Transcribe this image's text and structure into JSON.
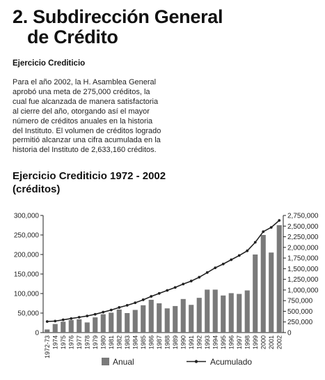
{
  "heading": {
    "line1": "2. Subdirección General",
    "line2": "de Crédito"
  },
  "section_subtitle": "Ejercicio Crediticio",
  "body_text": "Para el año 2002, la H. Asamblea General aprobó una meta de 275,000 créditos, la cual fue alcanzada de manera satisfactoria al cierre del año, otorgando así el mayor número de créditos anuales en la historia del Instituto. El volumen de créditos logrado permitió alcanzar una cifra acumulada en la historia del Instituto de 2,633,160 créditos.",
  "chart_heading": {
    "line1": "Ejercicio Crediticio 1972 - 2002",
    "line2": "(créditos)"
  },
  "colors": {
    "bar": "#7a7a7a",
    "line": "#222222",
    "text": "#222222"
  },
  "chart_data": {
    "type": "bar",
    "categories": [
      "1972-73",
      "1974",
      "1975",
      "1976",
      "1977",
      "1978",
      "1979",
      "1980",
      "1981",
      "1982",
      "1983",
      "1984",
      "1985",
      "1986",
      "1987",
      "1988",
      "1989",
      "1990",
      "1991",
      "1992",
      "1993",
      "1994",
      "1995",
      "1996",
      "1997",
      "1998",
      "1999",
      "2000",
      "2001",
      "2002"
    ],
    "series": [
      {
        "name": "Anual",
        "type": "bar",
        "axis": "left",
        "values": [
          8000,
          22000,
          28000,
          32000,
          34000,
          26000,
          39000,
          47000,
          51000,
          59000,
          50000,
          58000,
          70000,
          84000,
          75000,
          62000,
          68000,
          86000,
          71000,
          89000,
          110000,
          110000,
          95000,
          101000,
          99000,
          108000,
          200000,
          250000,
          205000,
          275000
        ]
      },
      {
        "name": "Acumulado",
        "type": "line",
        "axis": "right",
        "values": [
          260000,
          270000,
          300000,
          330000,
          360000,
          390000,
          430000,
          480000,
          530000,
          590000,
          640000,
          700000,
          770000,
          850000,
          920000,
          990000,
          1060000,
          1140000,
          1210000,
          1300000,
          1410000,
          1520000,
          1610000,
          1710000,
          1810000,
          1920000,
          2120000,
          2370000,
          2470000,
          2633160
        ]
      }
    ],
    "y_left": {
      "min": 0,
      "max": 300000,
      "ticks": [
        "0",
        "50,000",
        "100,000",
        "150,000",
        "200,000",
        "250,000",
        "300,000"
      ]
    },
    "y_right": {
      "min": 0,
      "max": 2750000,
      "ticks": [
        "0",
        "250,000",
        "500,000",
        "750,000",
        "1,000,000",
        "1,250,000",
        "1,500,000",
        "1,750,000",
        "2,000,000",
        "2,250,000",
        "2,500,000",
        "2,750,000"
      ]
    },
    "legend": {
      "position": "bottom",
      "items": [
        "Anual",
        "Acumulado"
      ]
    },
    "grid": false
  }
}
